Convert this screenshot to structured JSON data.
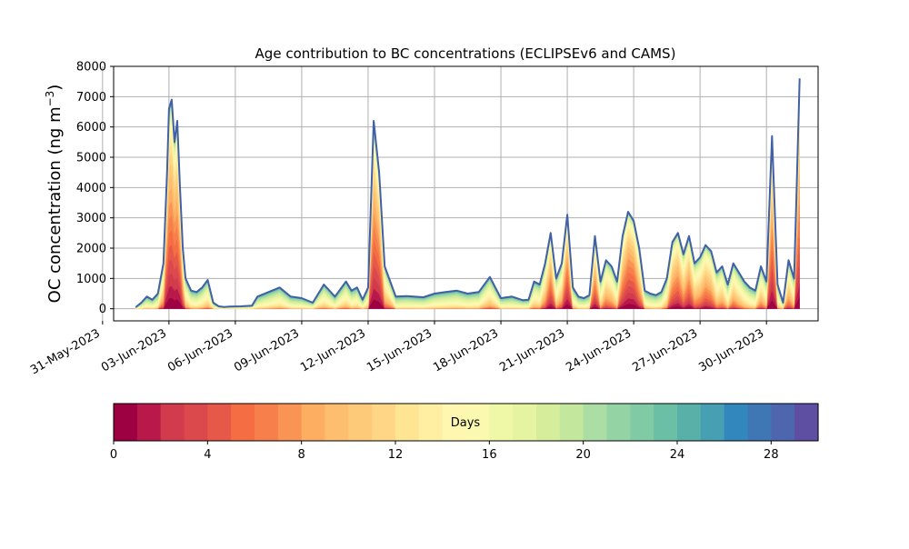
{
  "chart_data": {
    "type": "area",
    "title": "Age contribution to BC concentrations (ECLIPSEv6 and CAMS)",
    "ylabel_text": "OC concentration (ng m",
    "ylabel_sup": "−3",
    "ylabel_close": ")",
    "ylim": [
      -400,
      8000
    ],
    "yticks": [
      0,
      1000,
      2000,
      3000,
      4000,
      5000,
      6000,
      7000,
      8000
    ],
    "xlim": [
      "2023-05-31T12:00",
      "2023-07-02T08:00"
    ],
    "xticks": [
      "31-May-2023",
      "03-Jun-2023",
      "06-Jun-2023",
      "09-Jun-2023",
      "12-Jun-2023",
      "15-Jun-2023",
      "18-Jun-2023",
      "21-Jun-2023",
      "24-Jun-2023",
      "27-Jun-2023",
      "30-Jun-2023"
    ],
    "grid": true,
    "series_description": "stacked contribution by age (days 0–30)",
    "total": {
      "x": [
        "2023-06-01T12:00",
        "2023-06-01T18:00",
        "2023-06-02T00:00",
        "2023-06-02T06:00",
        "2023-06-02T12:00",
        "2023-06-02T18:00",
        "2023-06-02T22:00",
        "2023-06-03T00:00",
        "2023-06-03T03:00",
        "2023-06-03T06:00",
        "2023-06-03T09:00",
        "2023-06-03T12:00",
        "2023-06-03T15:00",
        "2023-06-03T18:00",
        "2023-06-04T00:00",
        "2023-06-04T06:00",
        "2023-06-04T12:00",
        "2023-06-04T18:00",
        "2023-06-05T00:00",
        "2023-06-05T06:00",
        "2023-06-05T12:00",
        "2023-06-05T18:00",
        "2023-06-06T06:00",
        "2023-06-06T18:00",
        "2023-06-07T00:00",
        "2023-06-07T12:00",
        "2023-06-08T00:00",
        "2023-06-08T12:00",
        "2023-06-09T00:00",
        "2023-06-09T12:00",
        "2023-06-10T00:00",
        "2023-06-10T12:00",
        "2023-06-11T00:00",
        "2023-06-11T06:00",
        "2023-06-11T12:00",
        "2023-06-11T18:00",
        "2023-06-12T00:00",
        "2023-06-12T06:00",
        "2023-06-12T12:00",
        "2023-06-12T18:00",
        "2023-06-13T06:00",
        "2023-06-13T18:00",
        "2023-06-14T12:00",
        "2023-06-15T00:00",
        "2023-06-15T12:00",
        "2023-06-16T00:00",
        "2023-06-16T12:00",
        "2023-06-17T00:00",
        "2023-06-17T12:00",
        "2023-06-18T00:00",
        "2023-06-18T12:00",
        "2023-06-19T00:00",
        "2023-06-19T06:00",
        "2023-06-19T12:00",
        "2023-06-19T18:00",
        "2023-06-20T00:00",
        "2023-06-20T06:00",
        "2023-06-20T12:00",
        "2023-06-20T18:00",
        "2023-06-21T00:00",
        "2023-06-21T06:00",
        "2023-06-21T12:00",
        "2023-06-21T18:00",
        "2023-06-22T00:00",
        "2023-06-22T06:00",
        "2023-06-22T12:00",
        "2023-06-22T18:00",
        "2023-06-23T00:00",
        "2023-06-23T06:00",
        "2023-06-23T12:00",
        "2023-06-23T18:00",
        "2023-06-24T00:00",
        "2023-06-24T06:00",
        "2023-06-24T12:00",
        "2023-06-24T18:00",
        "2023-06-25T00:00",
        "2023-06-25T06:00",
        "2023-06-25T12:00",
        "2023-06-25T18:00",
        "2023-06-26T00:00",
        "2023-06-26T06:00",
        "2023-06-26T12:00",
        "2023-06-26T18:00",
        "2023-06-27T00:00",
        "2023-06-27T06:00",
        "2023-06-27T12:00",
        "2023-06-27T18:00",
        "2023-06-28T00:00",
        "2023-06-28T06:00",
        "2023-06-28T12:00",
        "2023-06-28T18:00",
        "2023-06-29T00:00",
        "2023-06-29T06:00",
        "2023-06-29T12:00",
        "2023-06-29T18:00",
        "2023-06-30T00:00",
        "2023-06-30T06:00",
        "2023-06-30T12:00",
        "2023-06-30T18:00",
        "2023-07-01T00:00",
        "2023-07-01T06:00",
        "2023-07-01T08:00",
        "2023-07-01T12:00"
      ],
      "y": [
        50,
        200,
        400,
        300,
        500,
        1500,
        4500,
        6600,
        6900,
        5500,
        6200,
        4000,
        2000,
        1000,
        600,
        550,
        700,
        950,
        200,
        80,
        60,
        70,
        80,
        100,
        400,
        550,
        700,
        400,
        350,
        200,
        800,
        400,
        900,
        600,
        700,
        300,
        700,
        6200,
        4500,
        1400,
        400,
        420,
        380,
        500,
        550,
        600,
        500,
        550,
        1050,
        350,
        400,
        280,
        300,
        900,
        800,
        1500,
        2500,
        1000,
        1500,
        3100,
        700,
        400,
        350,
        450,
        2400,
        900,
        1600,
        1400,
        900,
        2400,
        3200,
        2900,
        2000,
        600,
        500,
        450,
        550,
        1000,
        2200,
        2500,
        1800,
        2400,
        1500,
        1700,
        2100,
        1900,
        1200,
        1400,
        800,
        1500,
        1200,
        900,
        700,
        600,
        1400,
        900,
        5700,
        800,
        200,
        1600,
        1000,
        3200,
        7600
      ]
    },
    "colorbar": {
      "label": "Days",
      "min": 0,
      "max": 30,
      "ticks": [
        "0",
        "4",
        "8",
        "12",
        "16",
        "20",
        "24",
        "28"
      ],
      "colors": [
        "#9e0142",
        "#b9194a",
        "#d13b4b",
        "#dc494c",
        "#e65949",
        "#f46d43",
        "#f67f4b",
        "#f99455",
        "#fdae61",
        "#febe6f",
        "#fdca79",
        "#fed685",
        "#fee593",
        "#feefa3",
        "#fff6b0",
        "#fbf8b0",
        "#eff8a6",
        "#e4f4a0",
        "#d6ee9b",
        "#c4e79e",
        "#abdda4",
        "#94d4a4",
        "#80cba4",
        "#6bbfa5",
        "#58b0a8",
        "#479fb3",
        "#3288bd",
        "#3e77b4",
        "#4e66ad",
        "#5e4fa2"
      ]
    }
  }
}
